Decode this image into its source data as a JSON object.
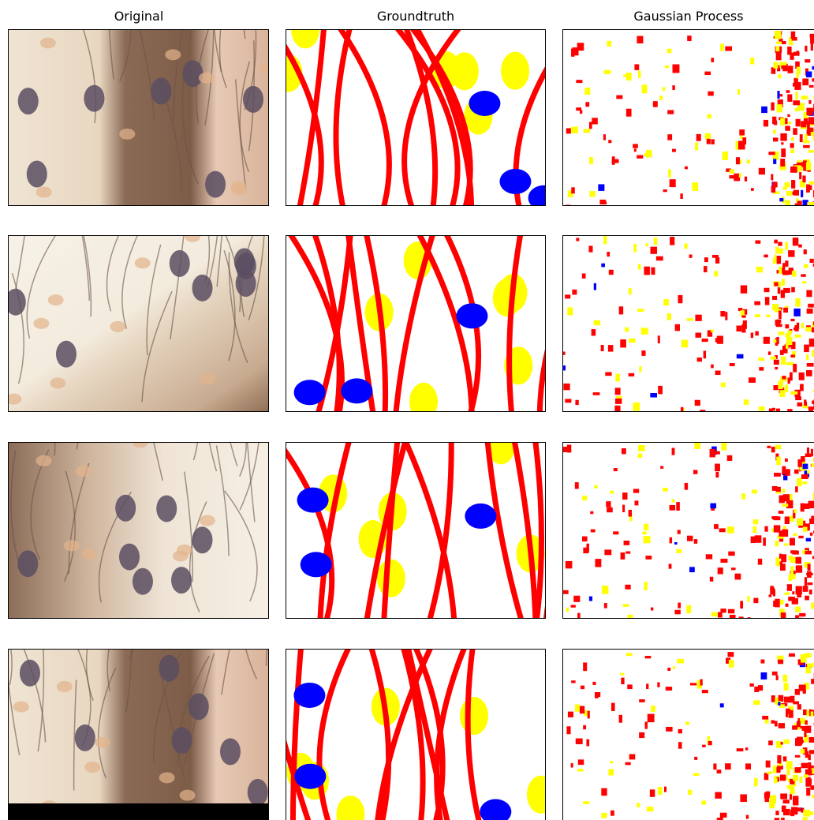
{
  "columns": [
    "Original",
    "Groundtruth",
    "Gaussian Process"
  ]
}
